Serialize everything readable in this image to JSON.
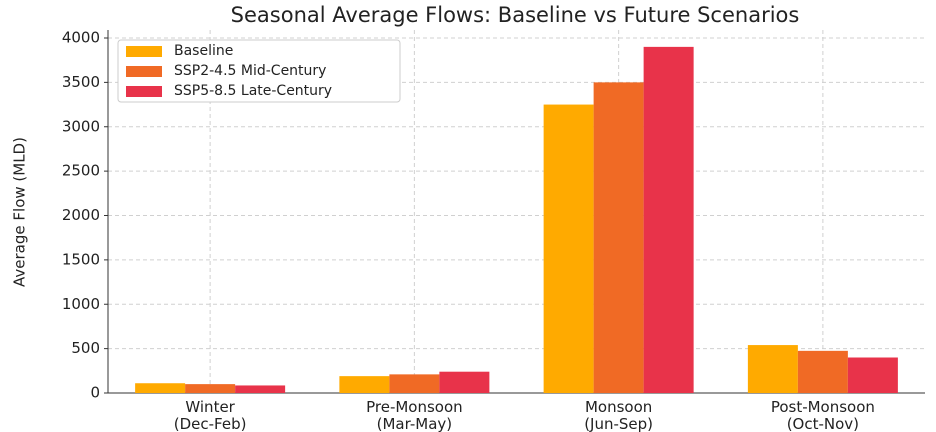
{
  "chart_data": {
    "type": "bar",
    "title": "Seasonal Average Flows: Baseline vs Future Scenarios",
    "y_label": "Average Flow (MLD)",
    "categories": [
      "Winter\n(Dec-Feb)",
      "Pre-Monsoon\n(Mar-May)",
      "Monsoon\n(Jun-Sep)",
      "Post-Monsoon\n(Oct-Nov)"
    ],
    "series": [
      {
        "name": "Baseline",
        "color": "#ffaa00",
        "values": [
          110,
          190,
          3250,
          540
        ]
      },
      {
        "name": "SSP2-4.5 Mid-Century",
        "color": "#f06a25",
        "values": [
          100,
          210,
          3500,
          475
        ]
      },
      {
        "name": "SSP5-8.5 Late-Century",
        "color": "#e8334a",
        "values": [
          85,
          240,
          3900,
          400
        ]
      }
    ],
    "ylim": [
      0,
      4000
    ],
    "yticks": [
      0,
      500,
      1000,
      1500,
      2000,
      2500,
      3000,
      3500,
      4000
    ],
    "grid": true,
    "legend": "upper-left"
  }
}
